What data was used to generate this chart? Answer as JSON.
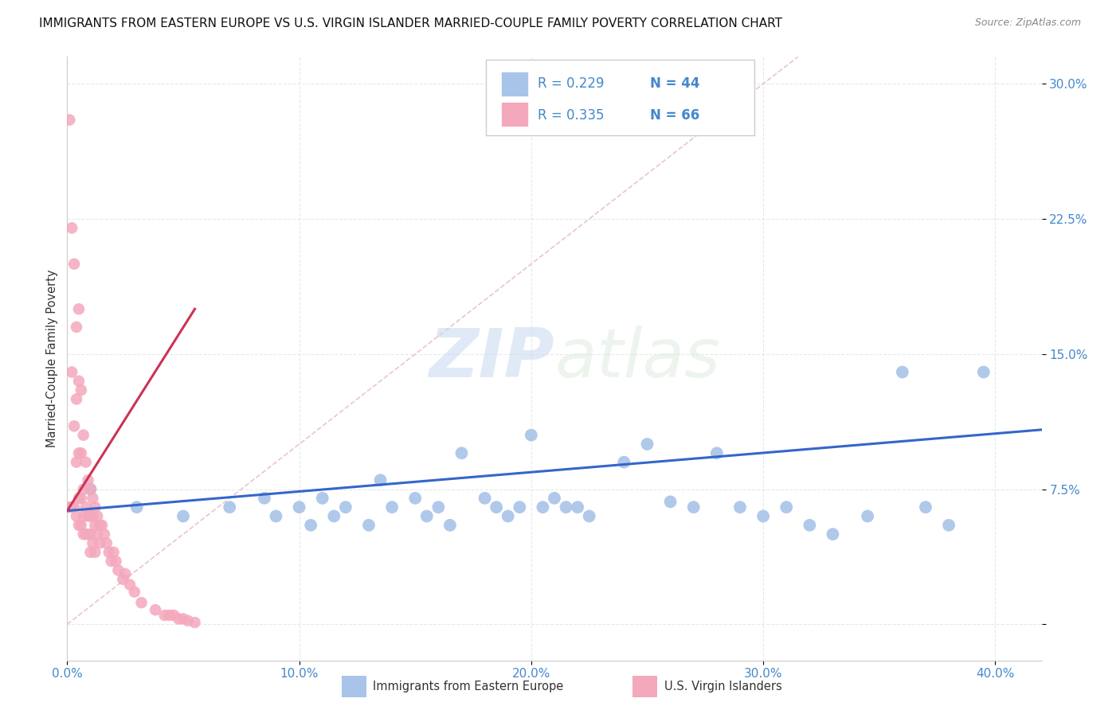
{
  "title": "IMMIGRANTS FROM EASTERN EUROPE VS U.S. VIRGIN ISLANDER MARRIED-COUPLE FAMILY POVERTY CORRELATION CHART",
  "source": "Source: ZipAtlas.com",
  "ylabel": "Married-Couple Family Poverty",
  "ytick_values": [
    0.0,
    0.075,
    0.15,
    0.225,
    0.3
  ],
  "ytick_labels": [
    "",
    "7.5%",
    "15.0%",
    "22.5%",
    "30.0%"
  ],
  "xtick_values": [
    0.0,
    0.1,
    0.2,
    0.3,
    0.4
  ],
  "xtick_labels": [
    "0.0%",
    "10.0%",
    "20.0%",
    "30.0%",
    "40.0%"
  ],
  "xlim": [
    0.0,
    0.42
  ],
  "ylim": [
    -0.02,
    0.315
  ],
  "watermark_zip": "ZIP",
  "watermark_atlas": "atlas",
  "blue_R": "0.229",
  "blue_N": "44",
  "pink_R": "0.335",
  "pink_N": "66",
  "legend_label_blue": "Immigrants from Eastern Europe",
  "legend_label_pink": "U.S. Virgin Islanders",
  "blue_scatter_color": "#a8c4e8",
  "pink_scatter_color": "#f4a8bc",
  "blue_line_color": "#3366cc",
  "pink_line_color": "#cc3355",
  "ref_line_color": "#e8c0c0",
  "tick_color": "#4488cc",
  "blue_line_x": [
    0.0,
    0.42
  ],
  "blue_line_y": [
    0.063,
    0.108
  ],
  "pink_line_x": [
    0.0,
    0.055
  ],
  "pink_line_y": [
    0.063,
    0.175
  ],
  "ref_line_x": [
    0.0,
    0.315
  ],
  "ref_line_y": [
    0.0,
    0.315
  ],
  "blue_scatter_x": [
    0.01,
    0.03,
    0.05,
    0.07,
    0.085,
    0.09,
    0.1,
    0.105,
    0.11,
    0.115,
    0.12,
    0.13,
    0.135,
    0.14,
    0.15,
    0.155,
    0.16,
    0.165,
    0.17,
    0.18,
    0.185,
    0.19,
    0.195,
    0.2,
    0.205,
    0.21,
    0.215,
    0.22,
    0.225,
    0.24,
    0.25,
    0.26,
    0.27,
    0.28,
    0.29,
    0.3,
    0.31,
    0.32,
    0.33,
    0.345,
    0.36,
    0.37,
    0.38,
    0.395
  ],
  "blue_scatter_y": [
    0.075,
    0.065,
    0.06,
    0.065,
    0.07,
    0.06,
    0.065,
    0.055,
    0.07,
    0.06,
    0.065,
    0.055,
    0.08,
    0.065,
    0.07,
    0.06,
    0.065,
    0.055,
    0.095,
    0.07,
    0.065,
    0.06,
    0.065,
    0.105,
    0.065,
    0.07,
    0.065,
    0.065,
    0.06,
    0.09,
    0.1,
    0.068,
    0.065,
    0.095,
    0.065,
    0.06,
    0.065,
    0.055,
    0.05,
    0.06,
    0.14,
    0.065,
    0.055,
    0.14
  ],
  "pink_scatter_x": [
    0.001,
    0.001,
    0.002,
    0.002,
    0.002,
    0.003,
    0.003,
    0.003,
    0.004,
    0.004,
    0.004,
    0.004,
    0.005,
    0.005,
    0.005,
    0.005,
    0.005,
    0.006,
    0.006,
    0.006,
    0.006,
    0.007,
    0.007,
    0.007,
    0.007,
    0.008,
    0.008,
    0.008,
    0.009,
    0.009,
    0.009,
    0.01,
    0.01,
    0.01,
    0.01,
    0.011,
    0.011,
    0.011,
    0.012,
    0.012,
    0.012,
    0.013,
    0.013,
    0.014,
    0.014,
    0.015,
    0.016,
    0.017,
    0.018,
    0.019,
    0.02,
    0.021,
    0.022,
    0.024,
    0.025,
    0.027,
    0.029,
    0.032,
    0.038,
    0.042,
    0.044,
    0.046,
    0.048,
    0.05,
    0.052,
    0.055
  ],
  "pink_scatter_y": [
    0.28,
    0.065,
    0.22,
    0.14,
    0.065,
    0.2,
    0.11,
    0.065,
    0.165,
    0.125,
    0.09,
    0.06,
    0.175,
    0.135,
    0.095,
    0.07,
    0.055,
    0.13,
    0.095,
    0.07,
    0.055,
    0.105,
    0.075,
    0.06,
    0.05,
    0.09,
    0.065,
    0.05,
    0.08,
    0.06,
    0.05,
    0.075,
    0.06,
    0.05,
    0.04,
    0.07,
    0.06,
    0.045,
    0.065,
    0.055,
    0.04,
    0.06,
    0.05,
    0.055,
    0.045,
    0.055,
    0.05,
    0.045,
    0.04,
    0.035,
    0.04,
    0.035,
    0.03,
    0.025,
    0.028,
    0.022,
    0.018,
    0.012,
    0.008,
    0.005,
    0.005,
    0.005,
    0.003,
    0.003,
    0.002,
    0.001
  ]
}
